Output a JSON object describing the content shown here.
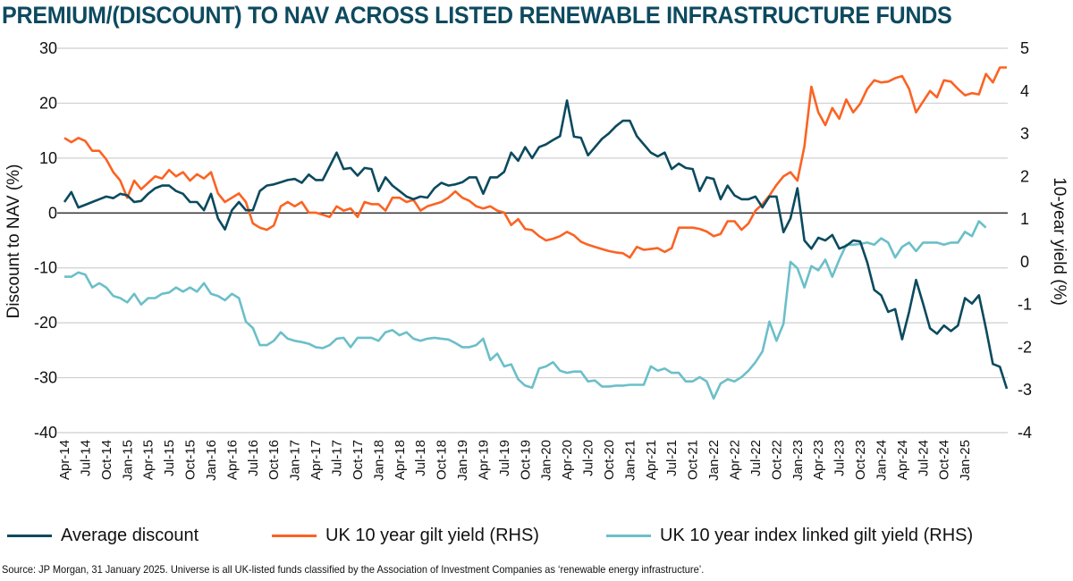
{
  "title": "PREMIUM/(DISCOUNT) TO NAV ACROSS LISTED RENEWABLE INFRASTRUCTURE FUNDS",
  "source": "Source: JP Morgan, 31 January 2025. Universe is all UK-listed funds classified by the Association of Investment Companies as ‘renewable energy infrastructure’.",
  "chart_data": {
    "type": "line",
    "title": "PREMIUM/(DISCOUNT) TO NAV ACROSS LISTED RENEWABLE INFRASTRUCTURE FUNDS",
    "xlabel": "",
    "ylabel": "Discount to NAV (%)",
    "y2label": "10-year yield (%)",
    "ylim": [
      -40,
      30
    ],
    "y2lim": [
      -4,
      5
    ],
    "yticks": [
      "30",
      "20",
      "10",
      "0",
      "-10",
      "-20",
      "-30",
      "-40"
    ],
    "y2ticks": [
      "5",
      "4",
      "3",
      "2",
      "1",
      "0",
      "-1",
      "-2",
      "-3",
      "-4"
    ],
    "grid": true,
    "legend": "bottom",
    "x_start": "Apr-14",
    "x_frequency": "monthly",
    "xtick_labels": [
      "Apr-14",
      "Jul-14",
      "Oct-14",
      "Jan-15",
      "Apr-15",
      "Jul-15",
      "Oct-15",
      "Jan-16",
      "Apr-16",
      "Jul-16",
      "Oct-16",
      "Jan-17",
      "Apr-17",
      "Jul-17",
      "Oct-17",
      "Jan-18",
      "Apr-18",
      "Jul-18",
      "Oct-18",
      "Jan-19",
      "Apr-19",
      "Jul-19",
      "Oct-19",
      "Jan-20",
      "Apr-20",
      "Jul-20",
      "Oct-20",
      "Jan-21",
      "Apr-21",
      "Jul-21",
      "Oct-21",
      "Jan-22",
      "Apr-22",
      "Jul-22",
      "Oct-22",
      "Jan-23",
      "Apr-23",
      "Jul-23",
      "Oct-23",
      "Jan-24",
      "Apr-24",
      "Jul-24",
      "Oct-24",
      "Jan-25"
    ],
    "series": [
      {
        "name": "Average discount",
        "axis": "left",
        "color": "#0b4a5e",
        "values": [
          2,
          3.8,
          1,
          1.5,
          2,
          2.5,
          3,
          2.7,
          3.5,
          3.2,
          2,
          2.2,
          3.5,
          4.5,
          5,
          5,
          4,
          3.5,
          2,
          2,
          0.5,
          3.5,
          -1,
          -3,
          0.5,
          2,
          0.5,
          0.5,
          4,
          5,
          5.2,
          5.6,
          6,
          6.2,
          5.5,
          7,
          6,
          6,
          8.5,
          11,
          8,
          8.2,
          6.8,
          8.2,
          8,
          4,
          6.5,
          5,
          4,
          3,
          2.5,
          3,
          2.8,
          4.5,
          5.5,
          5,
          5.2,
          5.6,
          6.5,
          6.5,
          3.5,
          6.5,
          6.5,
          7.5,
          11,
          9.5,
          12,
          10,
          12,
          12.5,
          13.3,
          14,
          20.5,
          13.9,
          13.7,
          10.5,
          12,
          13.5,
          14.5,
          15.8,
          16.8,
          16.8,
          14,
          12.5,
          11,
          10.3,
          11,
          8,
          9,
          8.2,
          8,
          4,
          6.5,
          6.2,
          2.5,
          5,
          3.2,
          2.5,
          2.5,
          3,
          1,
          3,
          3,
          -3.5,
          -1,
          4.5,
          -5,
          -6.5,
          -4.5,
          -5,
          -4,
          -6.5,
          -6,
          -5,
          -5.2,
          -9,
          -14,
          -15,
          -18,
          -17.5,
          -23,
          -18,
          -12.2,
          -16.5,
          -21,
          -22,
          -20.5,
          -21.5,
          -20.5,
          -15.5,
          -16.5,
          -15,
          -21,
          -27.5,
          -28,
          -32
        ]
      },
      {
        "name": "UK 10 year gilt yield (RHS)",
        "axis": "right",
        "color": "#fb6323",
        "values": [
          2.9,
          2.8,
          2.9,
          2.83,
          2.6,
          2.6,
          2.4,
          2.1,
          1.9,
          1.5,
          1.9,
          1.7,
          1.85,
          2,
          1.95,
          2.15,
          2,
          2.1,
          1.9,
          2.05,
          1.95,
          2.1,
          1.6,
          1.4,
          1.5,
          1.6,
          1.4,
          0.9,
          0.8,
          0.75,
          0.85,
          1.3,
          1.4,
          1.3,
          1.4,
          1.15,
          1.15,
          1.1,
          1.05,
          1.3,
          1.2,
          1.25,
          1.05,
          1.4,
          1.35,
          1.35,
          1.2,
          1.5,
          1.5,
          1.4,
          1.45,
          1.2,
          1.3,
          1.35,
          1.4,
          1.5,
          1.65,
          1.5,
          1.43,
          1.3,
          1.25,
          1.3,
          1.2,
          1.15,
          0.86,
          1,
          0.77,
          0.74,
          0.6,
          0.5,
          0.54,
          0.6,
          0.7,
          0.62,
          0.47,
          0.4,
          0.35,
          0.3,
          0.25,
          0.22,
          0.2,
          0.1,
          0.35,
          0.28,
          0.3,
          0.32,
          0.23,
          0.32,
          0.8,
          0.8,
          0.8,
          0.77,
          0.71,
          0.6,
          0.65,
          0.95,
          0.95,
          0.75,
          0.9,
          1.2,
          1.35,
          1.55,
          1.8,
          2,
          2.1,
          1.9,
          2.7,
          4.1,
          3.5,
          3.2,
          3.6,
          3.35,
          3.8,
          3.5,
          3.7,
          4.05,
          4.25,
          4.2,
          4.22,
          4.3,
          4.35,
          4.05,
          3.5,
          3.75,
          4,
          3.85,
          4.25,
          4.22,
          4.05,
          3.9,
          3.95,
          3.92,
          4.4,
          4.2,
          4.55,
          4.55
        ]
      },
      {
        "name": "UK 10 year index linked gilt yield (RHS)",
        "axis": "right",
        "color": "#6bbfc9",
        "values": [
          -0.35,
          -0.35,
          -0.25,
          -0.3,
          -0.6,
          -0.5,
          -0.6,
          -0.8,
          -0.85,
          -0.95,
          -0.75,
          -1,
          -0.85,
          -0.85,
          -0.75,
          -0.72,
          -0.6,
          -0.7,
          -0.6,
          -0.7,
          -0.5,
          -0.75,
          -0.8,
          -0.9,
          -0.75,
          -0.85,
          -1.4,
          -1.55,
          -1.95,
          -1.95,
          -1.85,
          -1.65,
          -1.8,
          -1.85,
          -1.88,
          -1.92,
          -2,
          -2.02,
          -1.95,
          -1.8,
          -1.78,
          -2,
          -1.78,
          -1.78,
          -1.78,
          -1.85,
          -1.65,
          -1.6,
          -1.72,
          -1.65,
          -1.8,
          -1.85,
          -1.8,
          -1.78,
          -1.8,
          -1.82,
          -1.9,
          -2,
          -2,
          -1.95,
          -1.8,
          -2.3,
          -2.15,
          -2.45,
          -2.4,
          -2.75,
          -2.9,
          -2.95,
          -2.5,
          -2.45,
          -2.35,
          -2.55,
          -2.6,
          -2.57,
          -2.57,
          -2.8,
          -2.78,
          -2.92,
          -2.92,
          -2.9,
          -2.9,
          -2.88,
          -2.88,
          -2.88,
          -2.45,
          -2.55,
          -2.5,
          -2.6,
          -2.6,
          -2.8,
          -2.8,
          -2.7,
          -2.8,
          -3.2,
          -2.85,
          -2.75,
          -2.8,
          -2.7,
          -2.55,
          -2.35,
          -2.1,
          -1.4,
          -1.85,
          -1.45,
          0,
          -0.15,
          -0.6,
          -0.1,
          -0.2,
          0.05,
          -0.35,
          0.05,
          0.4,
          0.4,
          0.42,
          0.45,
          0.4,
          0.55,
          0.45,
          0.1,
          0.35,
          0.45,
          0.25,
          0.45,
          0.45,
          0.45,
          0.4,
          0.45,
          0.45,
          0.7,
          0.6,
          0.95,
          0.8
        ]
      }
    ]
  },
  "legend": [
    {
      "label": "Average discount",
      "color": "#0b4a5e"
    },
    {
      "label": "UK 10 year gilt yield (RHS)",
      "color": "#fb6323"
    },
    {
      "label": "UK 10 year index linked gilt yield (RHS)",
      "color": "#6bbfc9"
    }
  ]
}
